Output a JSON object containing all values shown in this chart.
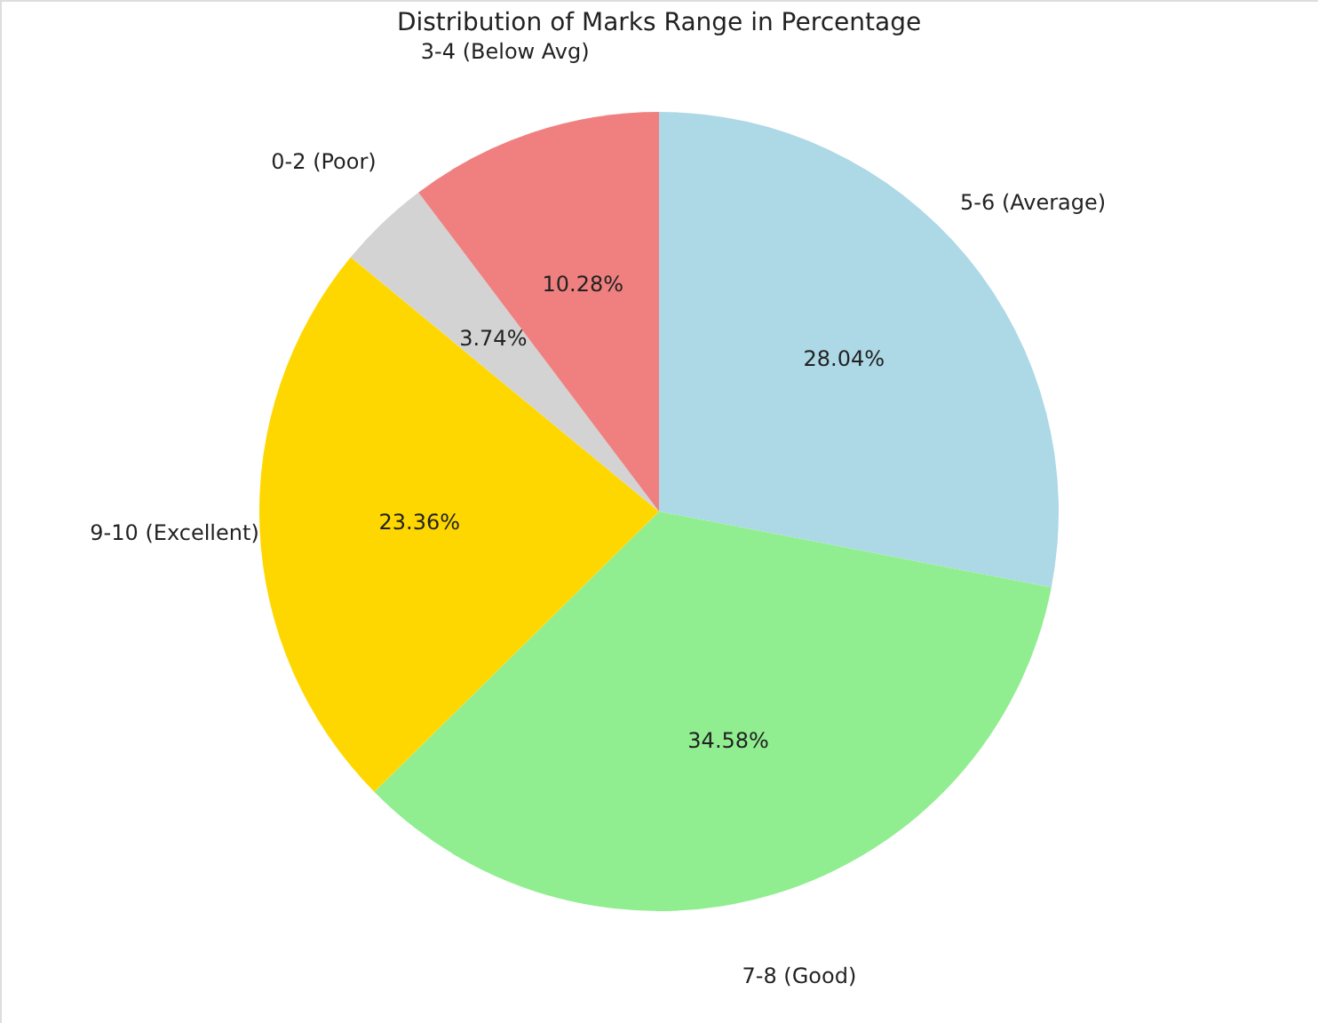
{
  "chart_data": {
    "type": "pie",
    "title": "Distribution of Marks Range in Percentage",
    "categories": [
      "5-6 (Average)",
      "7-8 (Good)",
      "9-10 (Excellent)",
      "0-2 (Poor)",
      "3-4 (Below Avg)"
    ],
    "values": [
      28.04,
      34.58,
      23.36,
      3.74,
      10.28
    ],
    "value_labels": [
      "28.04%",
      "34.58%",
      "23.36%",
      "3.74%",
      "10.28%"
    ],
    "colors": [
      "#add8e6",
      "#90ee90",
      "#ffd700",
      "#d3d3d3",
      "#f08080"
    ]
  }
}
